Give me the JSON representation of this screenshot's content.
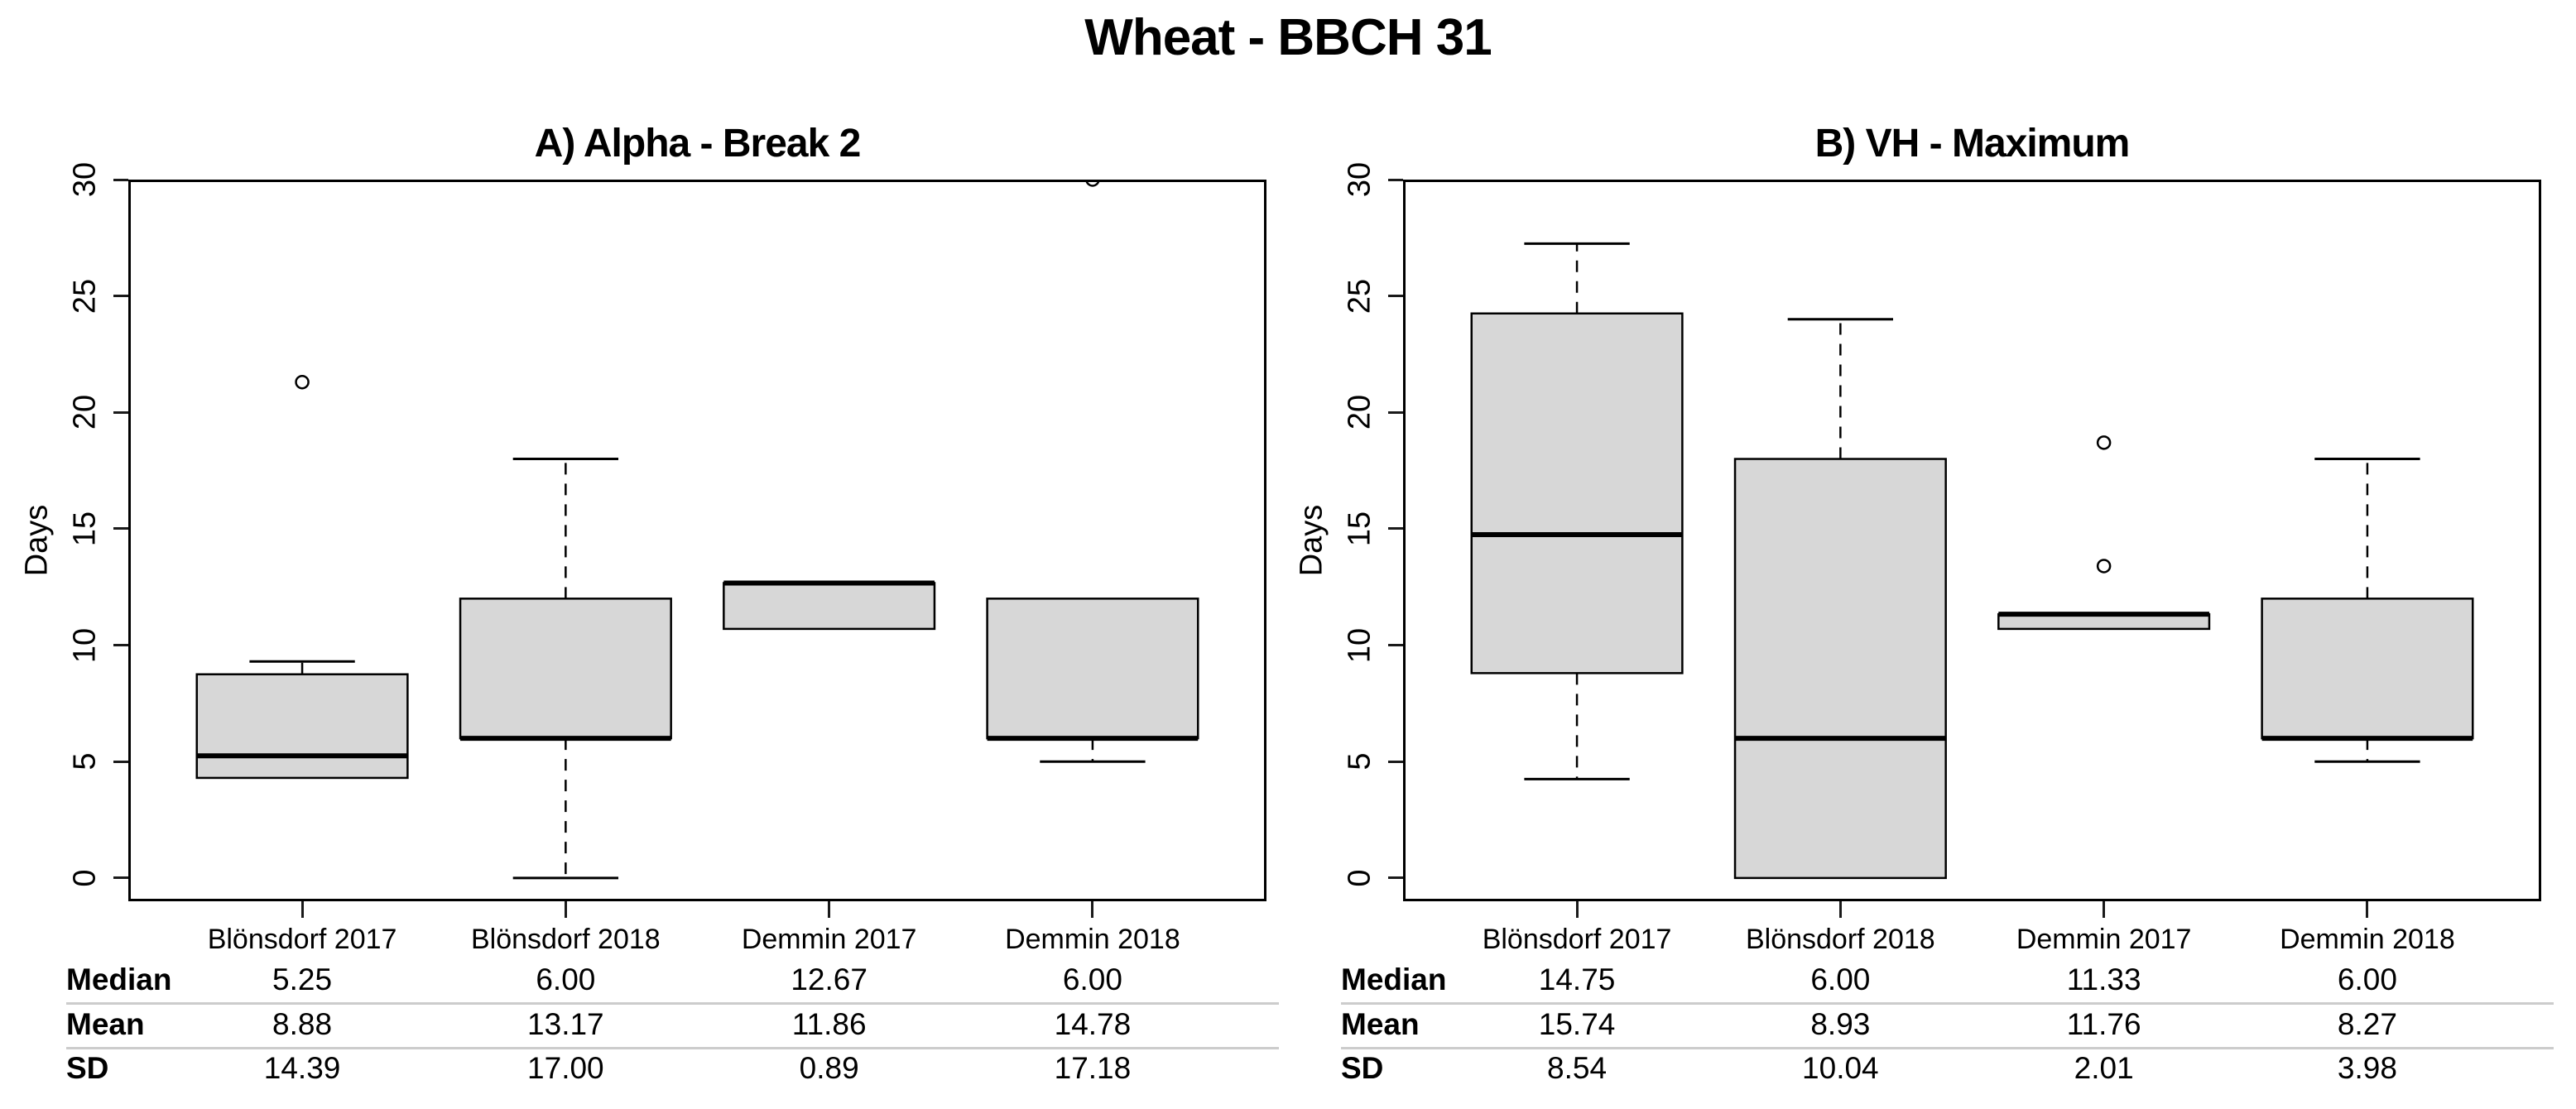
{
  "figure": {
    "title": "Wheat - BBCH 31"
  },
  "colors": {
    "background": "#ffffff",
    "box_fill": "#d7d7d7",
    "line": "#000000",
    "separator": "#cccccc"
  },
  "chart_data": [
    {
      "type": "boxplot",
      "panel_label": "A",
      "title": "A) Alpha - Break 2",
      "ylabel": "Days",
      "ylim": [
        -1,
        30
      ],
      "yticks": [
        0,
        5,
        10,
        15,
        20,
        25,
        30
      ],
      "grid": false,
      "categories": [
        "Blönsdorf 2017",
        "Blönsdorf 2018",
        "Demmin 2017",
        "Demmin 2018"
      ],
      "boxes": [
        {
          "category": "Blönsdorf 2017",
          "whisker_low": null,
          "q1": 4.3,
          "median": 5.25,
          "q3": 8.75,
          "whisker_high": 9.3,
          "outliers": [
            21.3
          ]
        },
        {
          "category": "Blönsdorf 2018",
          "whisker_low": 0,
          "q1": 6,
          "median": 6,
          "q3": 12,
          "whisker_high": 18,
          "outliers": []
        },
        {
          "category": "Demmin 2017",
          "whisker_low": null,
          "q1": 10.7,
          "median": 12.67,
          "q3": 12.67,
          "whisker_high": null,
          "outliers": []
        },
        {
          "category": "Demmin 2018",
          "whisker_low": 5,
          "q1": 6,
          "median": 6,
          "q3": 12,
          "whisker_high": null,
          "outliers": [
            30
          ]
        }
      ],
      "table": {
        "rows": [
          {
            "label": "Median",
            "values": [
              "5.25",
              "6.00",
              "12.67",
              "6.00"
            ]
          },
          {
            "label": "Mean",
            "values": [
              "8.88",
              "13.17",
              "11.86",
              "14.78"
            ]
          },
          {
            "label": "SD",
            "values": [
              "14.39",
              "17.00",
              "0.89",
              "17.18"
            ]
          }
        ]
      }
    },
    {
      "type": "boxplot",
      "panel_label": "B",
      "title": "B) VH - Maximum",
      "ylabel": "Days",
      "ylim": [
        -1,
        30
      ],
      "yticks": [
        0,
        5,
        10,
        15,
        20,
        25,
        30
      ],
      "grid": false,
      "categories": [
        "Blönsdorf 2017",
        "Blönsdorf 2018",
        "Demmin 2017",
        "Demmin 2018"
      ],
      "boxes": [
        {
          "category": "Blönsdorf 2017",
          "whisker_low": 4.25,
          "q1": 8.8,
          "median": 14.75,
          "q3": 24.25,
          "whisker_high": 27.25,
          "outliers": []
        },
        {
          "category": "Blönsdorf 2018",
          "whisker_low": null,
          "q1": 0,
          "median": 6,
          "q3": 18,
          "whisker_high": 24,
          "outliers": []
        },
        {
          "category": "Demmin 2017",
          "whisker_low": null,
          "q1": 10.7,
          "median": 11.33,
          "q3": 11.33,
          "whisker_high": null,
          "outliers": [
            18.7,
            13.4
          ]
        },
        {
          "category": "Demmin 2018",
          "whisker_low": 5,
          "q1": 6,
          "median": 6,
          "q3": 12,
          "whisker_high": 18,
          "outliers": []
        }
      ],
      "table": {
        "rows": [
          {
            "label": "Median",
            "values": [
              "14.75",
              "6.00",
              "11.33",
              "6.00"
            ]
          },
          {
            "label": "Mean",
            "values": [
              "15.74",
              "8.93",
              "11.76",
              "8.27"
            ]
          },
          {
            "label": "SD",
            "values": [
              "8.54",
              "10.04",
              "2.01",
              "3.98"
            ]
          }
        ]
      }
    }
  ]
}
